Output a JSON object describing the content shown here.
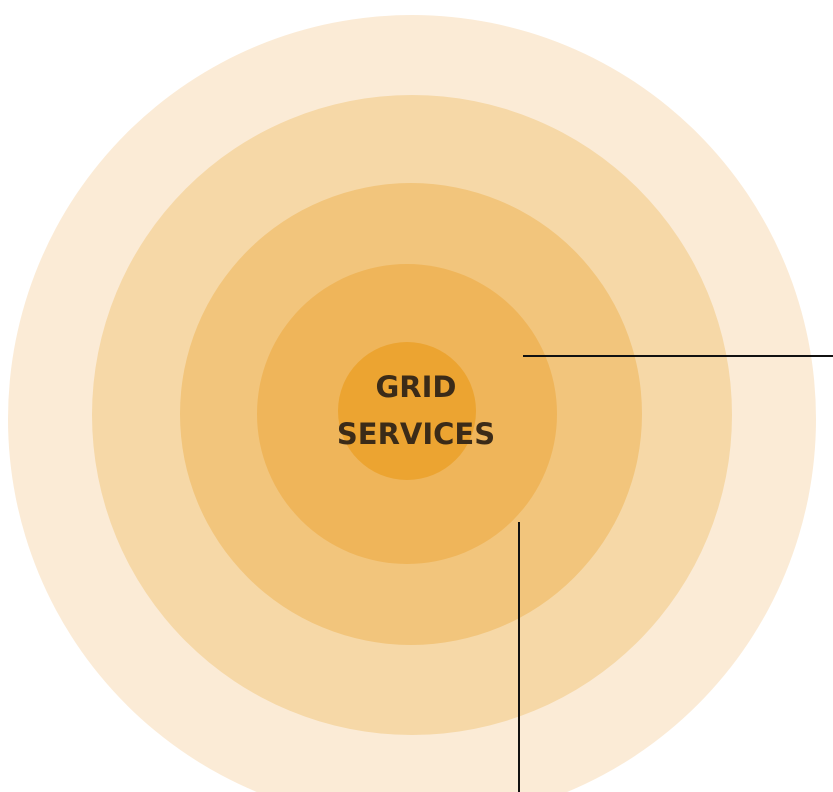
{
  "center": {
    "label_lines": [
      "GRID",
      "SERVICES"
    ]
  }
}
